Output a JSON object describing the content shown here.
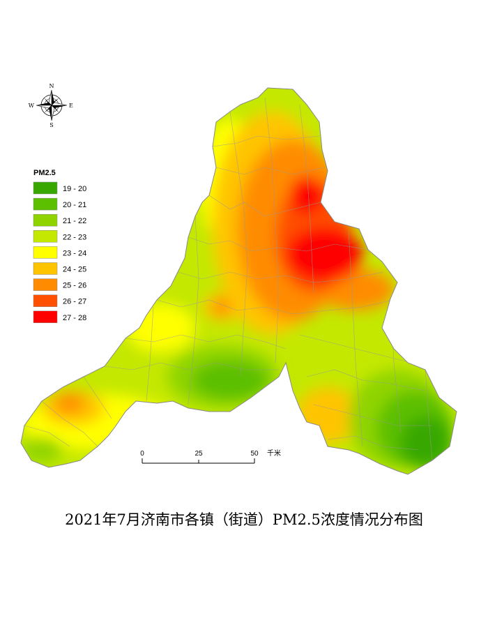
{
  "title": "2021年7月济南市各镇（街道）PM2.5浓度情况分布图",
  "compass": {
    "n": "N",
    "s": "S",
    "e": "E",
    "w": "W"
  },
  "legend": {
    "title": "PM2.5",
    "classes": [
      {
        "label": "19 - 20",
        "color": "#38a800"
      },
      {
        "label": "20 - 21",
        "color": "#5cbf00"
      },
      {
        "label": "21 - 22",
        "color": "#8fd400"
      },
      {
        "label": "22 - 23",
        "color": "#c4e800"
      },
      {
        "label": "23 - 24",
        "color": "#ffff00"
      },
      {
        "label": "24 - 25",
        "color": "#ffc400"
      },
      {
        "label": "25 - 26",
        "color": "#ff8c00"
      },
      {
        "label": "26 - 27",
        "color": "#ff4f00"
      },
      {
        "label": "27 - 28",
        "color": "#ff0000"
      }
    ]
  },
  "scale_bar": {
    "ticks": [
      "0",
      "25",
      "50"
    ],
    "unit": "千米"
  }
}
